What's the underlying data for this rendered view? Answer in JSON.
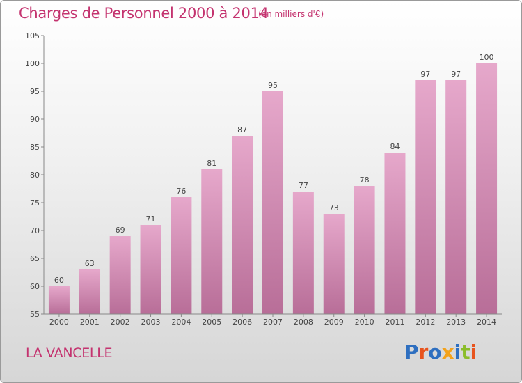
{
  "header": {
    "title": "Charges de Personnel 2000 à 2014",
    "subtitle": "(en milliers d'€)"
  },
  "footer": {
    "location": "LA VANCELLE",
    "logo_text": "Proxiti"
  },
  "colors": {
    "accent": "#c4336f",
    "bar_top": "#e6a8cb",
    "bar_bottom": "#b86e98",
    "logo_letters": [
      "#2e6fc0",
      "#e8541e",
      "#2e6fc0",
      "#f3a21b",
      "#2e6fc0",
      "#8bbd2a",
      "#e8541e"
    ]
  },
  "chart_data": {
    "type": "bar",
    "categories": [
      "2000",
      "2001",
      "2002",
      "2003",
      "2004",
      "2005",
      "2006",
      "2007",
      "2008",
      "2009",
      "2010",
      "2011",
      "2012",
      "2013",
      "2014"
    ],
    "values": [
      60,
      63,
      69,
      71,
      76,
      81,
      87,
      95,
      77,
      73,
      78,
      84,
      97,
      97,
      100
    ],
    "title": "Charges de Personnel 2000 à 2014",
    "subtitle": "(en milliers d'€)",
    "xlabel": "",
    "ylabel": "",
    "ylim": [
      55,
      105
    ],
    "yticks": [
      55,
      60,
      65,
      70,
      75,
      80,
      85,
      90,
      95,
      100,
      105
    ],
    "grid": false,
    "data_labels": true
  }
}
